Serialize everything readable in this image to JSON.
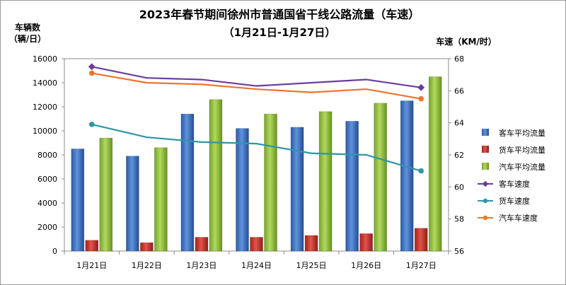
{
  "chart_data": {
    "type": "bar",
    "title": "2023年春节期间徐州市普通国省干线公路流量（车速）",
    "subtitle": "（1月21日-1月27日）",
    "ylabel_line1": "车辆数",
    "ylabel_line2": "（辆/日）",
    "y2label": "车速（KM/时）",
    "categories": [
      "1月21日",
      "1月22日",
      "1月23日",
      "1月24日",
      "1月25日",
      "1月26日",
      "1月27日"
    ],
    "ylim": [
      0,
      16000
    ],
    "yticks": [
      0,
      2000,
      4000,
      6000,
      8000,
      10000,
      12000,
      14000,
      16000
    ],
    "y2lim": [
      56,
      68
    ],
    "y2ticks": [
      56,
      58,
      60,
      62,
      64,
      66,
      68
    ],
    "legend_position": "right",
    "series": [
      {
        "name": "客车平均流量",
        "kind": "bar",
        "axis": "left",
        "color": "#3a6fbf",
        "values": [
          8500,
          7900,
          11400,
          10200,
          10300,
          10800,
          12500
        ]
      },
      {
        "name": "货车平均流量",
        "kind": "bar",
        "axis": "left",
        "color": "#c0392b",
        "values": [
          900,
          700,
          1150,
          1150,
          1300,
          1450,
          1900
        ]
      },
      {
        "name": "汽车平均流量",
        "kind": "bar",
        "axis": "left",
        "color": "#8dbb3a",
        "values": [
          9400,
          8600,
          12600,
          11400,
          11600,
          12300,
          14500
        ]
      },
      {
        "name": "客车速度",
        "kind": "line",
        "axis": "right",
        "color": "#6b3d9a",
        "values": [
          67.5,
          66.8,
          66.7,
          66.3,
          66.5,
          66.7,
          66.2
        ]
      },
      {
        "name": "货车速度",
        "kind": "line",
        "axis": "right",
        "color": "#2d96a8",
        "values": [
          63.9,
          63.1,
          62.8,
          62.7,
          62.1,
          62.0,
          61.0
        ]
      },
      {
        "name": "汽车车速度",
        "kind": "line",
        "axis": "right",
        "color": "#e8772e",
        "values": [
          67.1,
          66.5,
          66.4,
          66.1,
          65.9,
          66.1,
          65.5
        ]
      }
    ]
  }
}
